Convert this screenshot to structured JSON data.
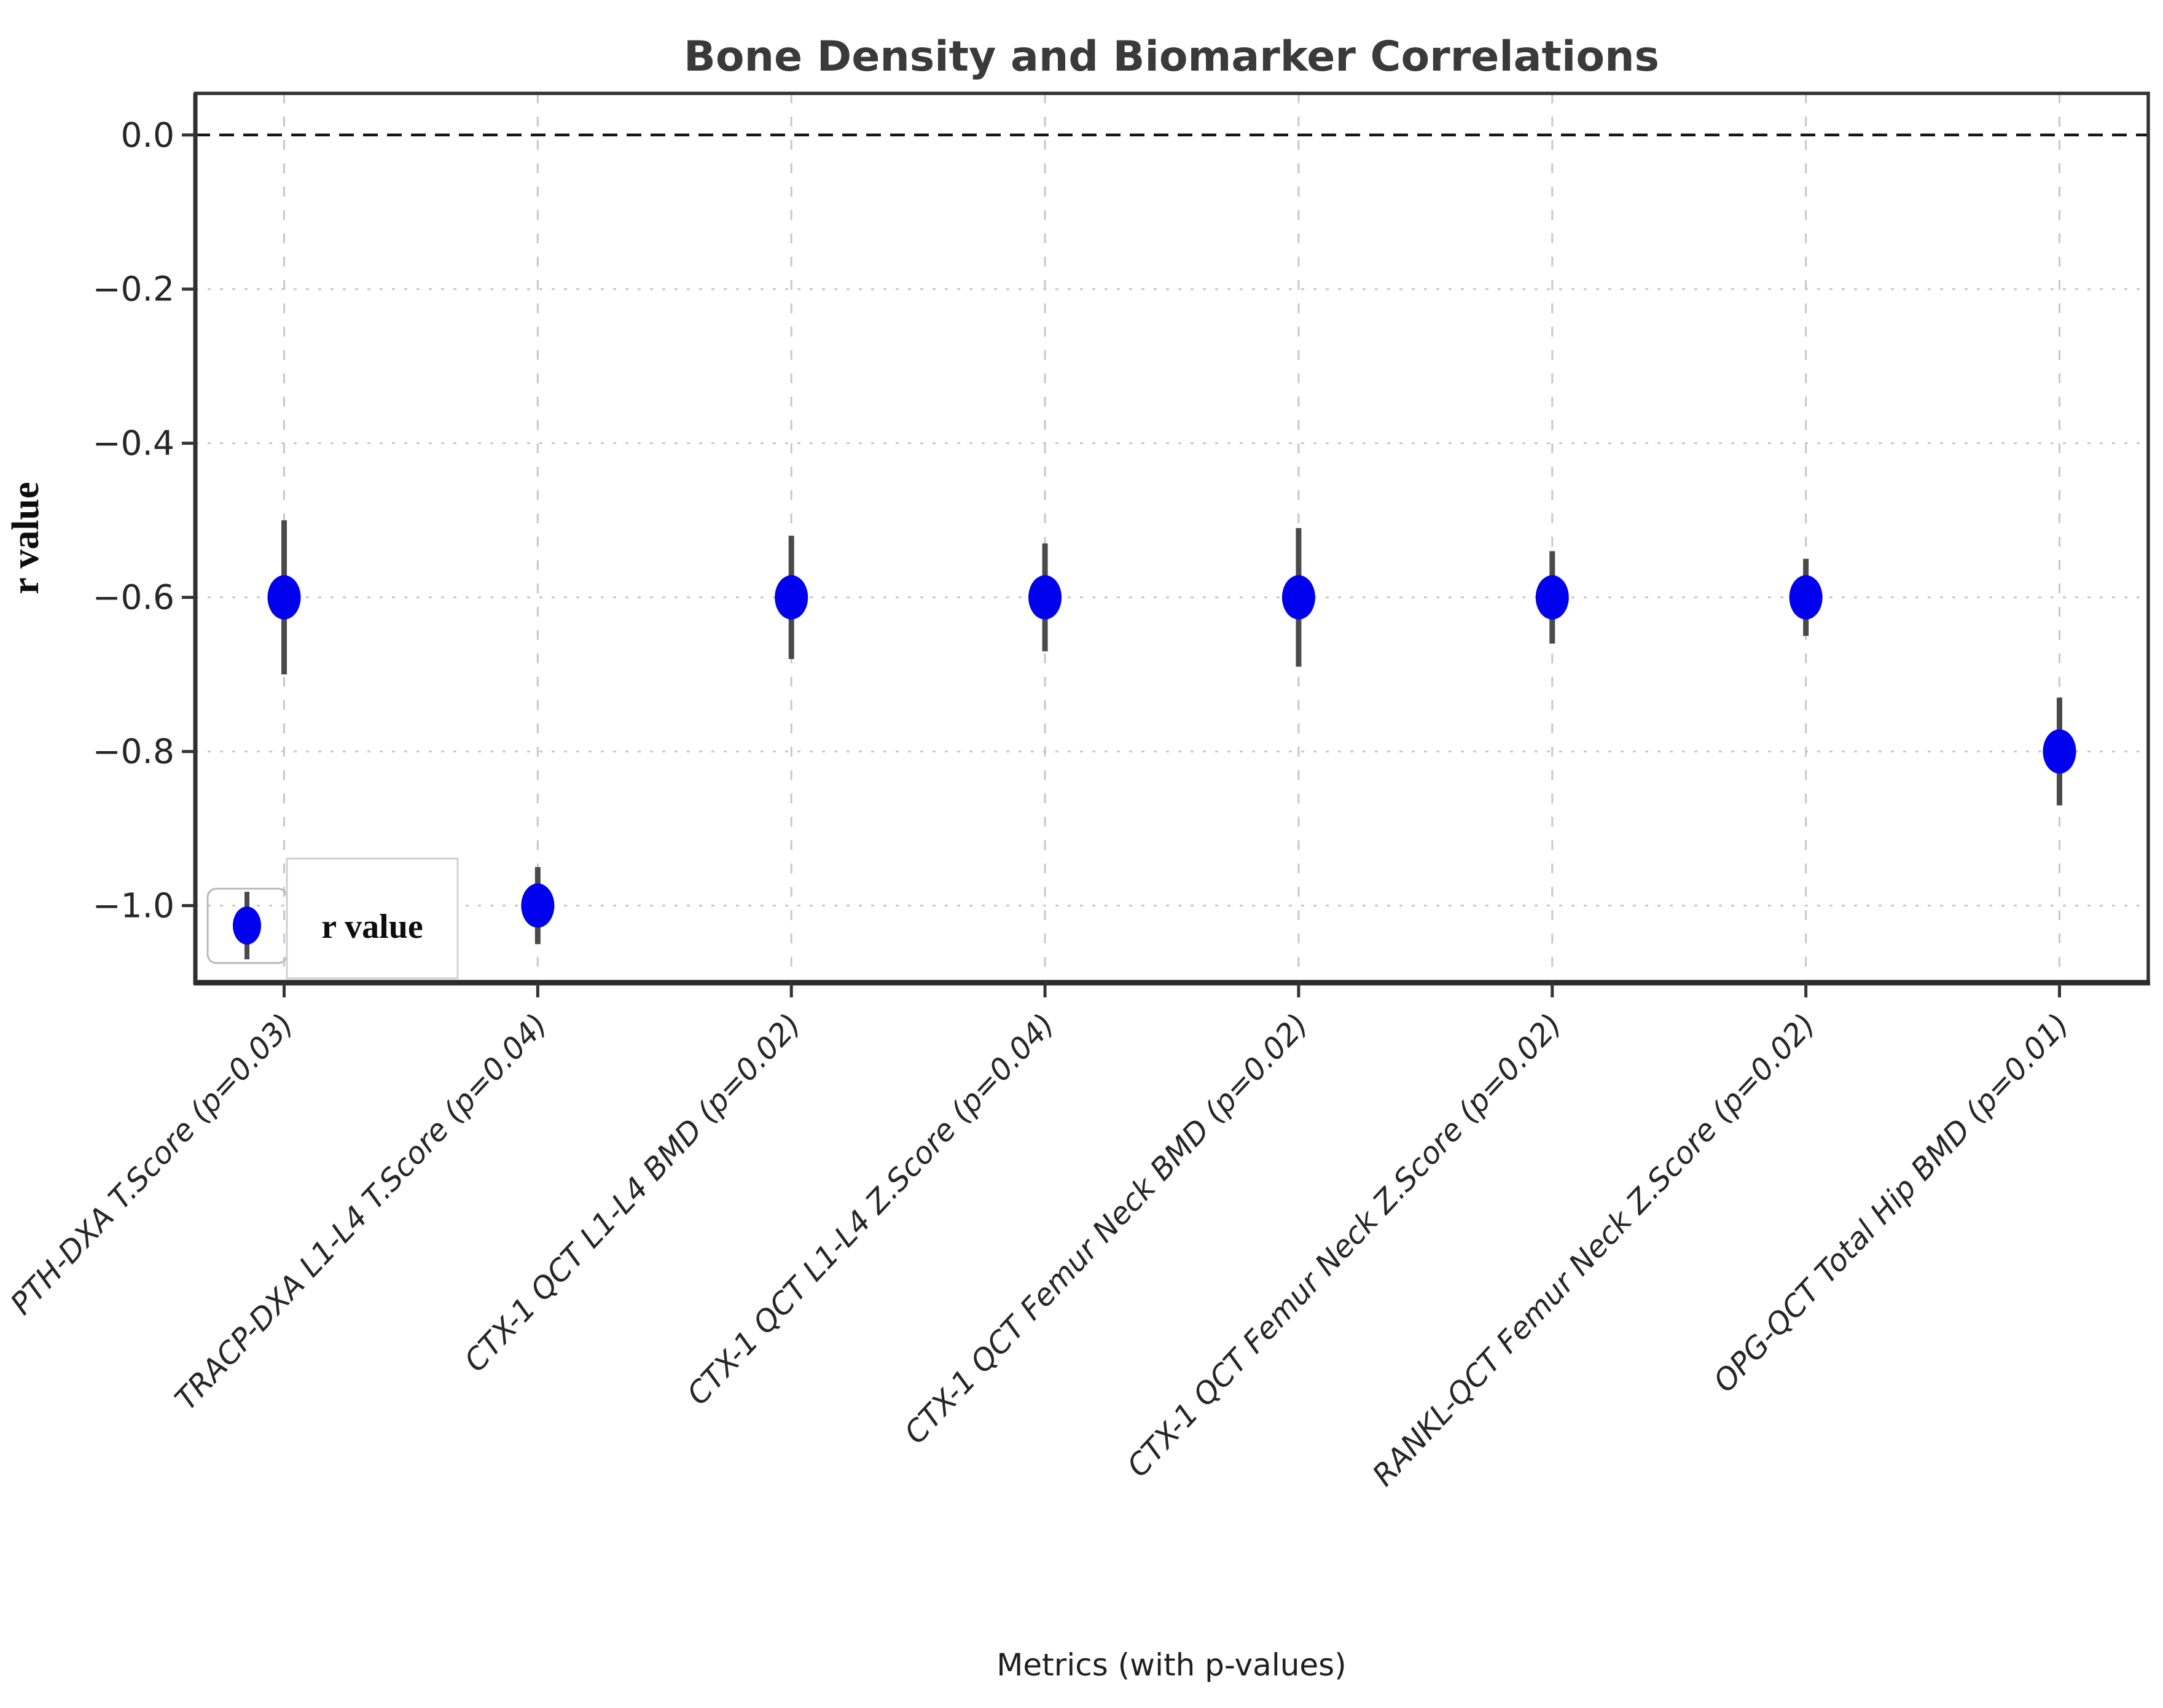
{
  "title": "Bone Density and Biomarker Correlations",
  "axes": {
    "x_label": "Metrics (with p-values)",
    "y_label": "r value",
    "y_tick_labels": [
      "0.0",
      "−0.2",
      "−0.4",
      "−0.6",
      "−0.8",
      "−1.0"
    ]
  },
  "legend": {
    "label": "r value",
    "position": "lower left"
  },
  "chart_data": {
    "type": "scatter",
    "title": "Bone Density and Biomarker Correlations",
    "xlabel": "Metrics (with p-values)",
    "ylabel": "r value",
    "categories": [
      "PTH-DXA T.Score (p=0.03)",
      "TRACP-DXA L1-L4 T.Score (p=0.04)",
      "CTX-1 QCT L1-L4 BMD (p=0.02)",
      "CTX-1 QCT L1-L4 Z.Score (p=0.04)",
      "CTX-1 QCT Femur Neck BMD (p=0.02)",
      "CTX-1 QCT Femur Neck Z.Score (p=0.02)",
      "RANKL-QCT Femur Neck Z.Score (p=0.02)",
      "OPG-QCT Total Hip BMD (p=0.01)"
    ],
    "series": [
      {
        "name": "r value",
        "values": [
          -0.6,
          -1.0,
          -0.6,
          -0.6,
          -0.6,
          -0.6,
          -0.6,
          -0.8
        ],
        "errors": [
          0.1,
          0.05,
          0.08,
          0.07,
          0.09,
          0.06,
          0.05,
          0.07
        ]
      }
    ],
    "yticks": [
      0.0,
      -0.2,
      -0.4,
      -0.6,
      -0.8,
      -1.0
    ],
    "ylim": [
      -1.1,
      0.054
    ],
    "grid": true,
    "reference_line_y": 0.0,
    "legend_position": "lower left",
    "colors": {
      "marker": "#0000ee",
      "errorbar": "#4a4a4a",
      "grid": "#c8c8c8",
      "spine": "#343434",
      "reference_line": "#141414",
      "legend_border": "#b9b9b9"
    }
  }
}
